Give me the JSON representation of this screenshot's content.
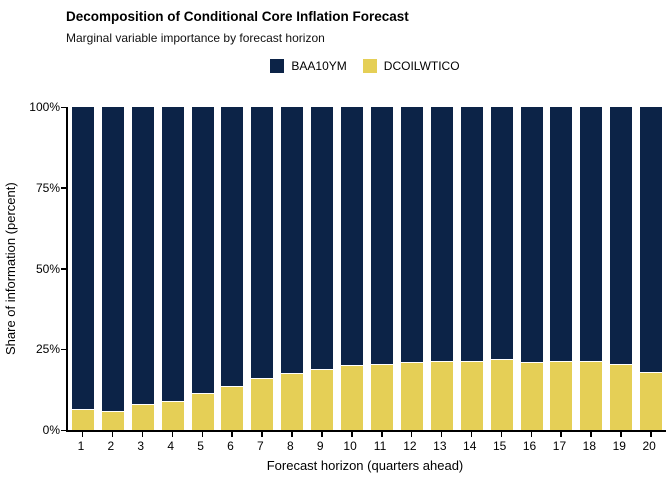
{
  "title": "Decomposition of Conditional Core Inflation Forecast",
  "subtitle": "Marginal variable importance by forecast horizon",
  "legend": [
    {
      "label": "BAA10YM",
      "color": "#0c2347"
    },
    {
      "label": "DCOILWTICO",
      "color": "#e5cf56"
    }
  ],
  "chart_data": {
    "type": "bar",
    "stacked": true,
    "title": "Decomposition of Conditional Core Inflation Forecast",
    "subtitle": "Marginal variable importance by forecast horizon",
    "xlabel": "Forecast horizon (quarters ahead)",
    "ylabel": "Share of information (percent)",
    "categories": [
      "1",
      "2",
      "3",
      "4",
      "5",
      "6",
      "7",
      "8",
      "9",
      "10",
      "11",
      "12",
      "13",
      "14",
      "15",
      "16",
      "17",
      "18",
      "19",
      "20"
    ],
    "series": [
      {
        "name": "BAA10YM",
        "color": "#0c2347",
        "values": [
          93.5,
          94,
          92,
          91,
          88.5,
          86.5,
          84,
          82.5,
          81,
          80,
          79.5,
          79,
          78.5,
          78.5,
          78,
          79,
          78.5,
          78.5,
          79.5,
          82
        ]
      },
      {
        "name": "DCOILWTICO",
        "color": "#e5cf56",
        "values": [
          6.5,
          6,
          8,
          9,
          11.5,
          13.5,
          16,
          17.5,
          19,
          20,
          20.5,
          21,
          21.5,
          21.5,
          22,
          21,
          21.5,
          21.5,
          20.5,
          18
        ]
      }
    ],
    "ylim": [
      0,
      100
    ],
    "y_ticks": [
      "0%",
      "25%",
      "50%",
      "75%",
      "100%"
    ],
    "y_tick_values": [
      0,
      25,
      50,
      75,
      100
    ],
    "grid": false,
    "legend_position": "top-center"
  }
}
